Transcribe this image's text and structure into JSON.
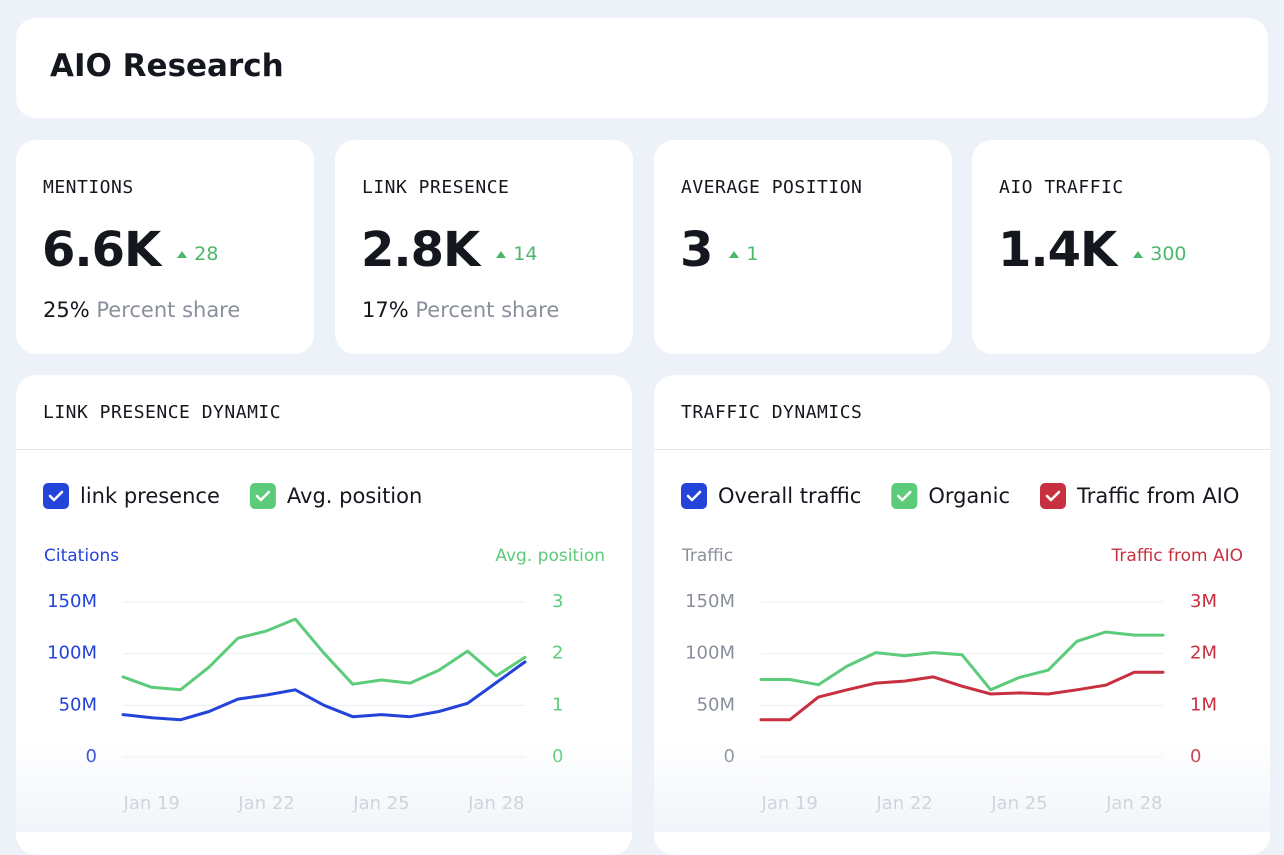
{
  "header": {
    "title": "AIO Research"
  },
  "cards": [
    {
      "label": "MENTIONS",
      "value": "6.6K",
      "delta": 28,
      "share": "25%",
      "share_label": "Percent share"
    },
    {
      "label": "LINK PRESENCE",
      "value": "2.8K",
      "delta": 14,
      "share": "17%",
      "share_label": "Percent share"
    },
    {
      "label": "AVERAGE POSITION",
      "value": "3",
      "delta": 1
    },
    {
      "label": "AIO TRAFFIC",
      "value": "1.4K",
      "delta": 300
    }
  ],
  "chart_data": [
    {
      "type": "line",
      "title": "LINK PRESENCE DYNAMIC",
      "categories": [
        null,
        "Jan 19",
        null,
        null,
        null,
        "Jan 22",
        null,
        null,
        null,
        "Jan 25",
        null,
        null,
        null,
        "Jan 28",
        null
      ],
      "series": [
        {
          "name": "link presence",
          "color": "#2443d9",
          "axis": "y",
          "values": [
            41000000,
            38000000,
            36000000,
            44000000,
            56000000,
            60000000,
            65000000,
            50000000,
            39000000,
            41000000,
            39000000,
            44000000,
            52000000,
            72000000,
            92000000
          ]
        },
        {
          "name": "Avg. position",
          "color": "#5ccb7a",
          "axis": "y2",
          "values": [
            1.55,
            1.35,
            1.3,
            1.74,
            2.3,
            2.44,
            2.67,
            2.01,
            1.41,
            1.49,
            1.43,
            1.68,
            2.05,
            1.57,
            1.93
          ]
        }
      ],
      "y_label": "Citations",
      "y_color": "#2443d9",
      "y2_label": "Avg. position",
      "y2_color": "#5ccb7a",
      "ylim": [
        0,
        150000000
      ],
      "yticks": [
        0,
        {
          "value": 50000000,
          "label": "50M"
        },
        {
          "value": 100000000,
          "label": "100M"
        },
        {
          "value": 150000000,
          "label": "150M"
        }
      ],
      "y2lim": [
        0,
        3
      ],
      "y2ticks": [
        0,
        1,
        2,
        3
      ],
      "grid": true
    },
    {
      "type": "line",
      "title": "TRAFFIC DYNAMICS",
      "categories": [
        null,
        "Jan 19",
        null,
        null,
        null,
        "Jan 22",
        null,
        null,
        null,
        "Jan 25",
        null,
        null,
        null,
        "Jan 28",
        null
      ],
      "series": [
        {
          "name": "Overall traffic",
          "color": "#2443d9",
          "axis": "y",
          "values": [
            null,
            null,
            null,
            null,
            null,
            null,
            null,
            null,
            null,
            null,
            null,
            null,
            null,
            null,
            null
          ]
        },
        {
          "name": "Organic",
          "color": "#5ccb7a",
          "axis": "y",
          "values": [
            75000000,
            75000000,
            70000000,
            88000000,
            101000000,
            98000000,
            101000000,
            99000000,
            65000000,
            77000000,
            84000000,
            112000000,
            121000000,
            118000000,
            118000000
          ]
        },
        {
          "name": "Traffic from AIO",
          "color": "#c8303f",
          "axis": "y2",
          "values": [
            720000,
            720000,
            1160000,
            1300000,
            1430000,
            1470000,
            1550000,
            1370000,
            1220000,
            1240000,
            1220000,
            1300000,
            1390000,
            1640000,
            1640000
          ]
        }
      ],
      "y_label": "Traffic",
      "y_color": "#8a8f9c",
      "y2_label": "Traffic from AIO",
      "y2_color": "#c8303f",
      "ylim": [
        0,
        150000000
      ],
      "yticks": [
        0,
        {
          "value": 50000000,
          "label": "50M"
        },
        {
          "value": 100000000,
          "label": "100M"
        },
        {
          "value": 150000000,
          "label": "150M"
        }
      ],
      "y2lim": [
        0,
        3000000
      ],
      "y2ticks": [
        0,
        {
          "value": 1000000,
          "label": "1M"
        },
        {
          "value": 2000000,
          "label": "2M"
        },
        {
          "value": 3000000,
          "label": "3M"
        }
      ],
      "grid": true
    }
  ]
}
